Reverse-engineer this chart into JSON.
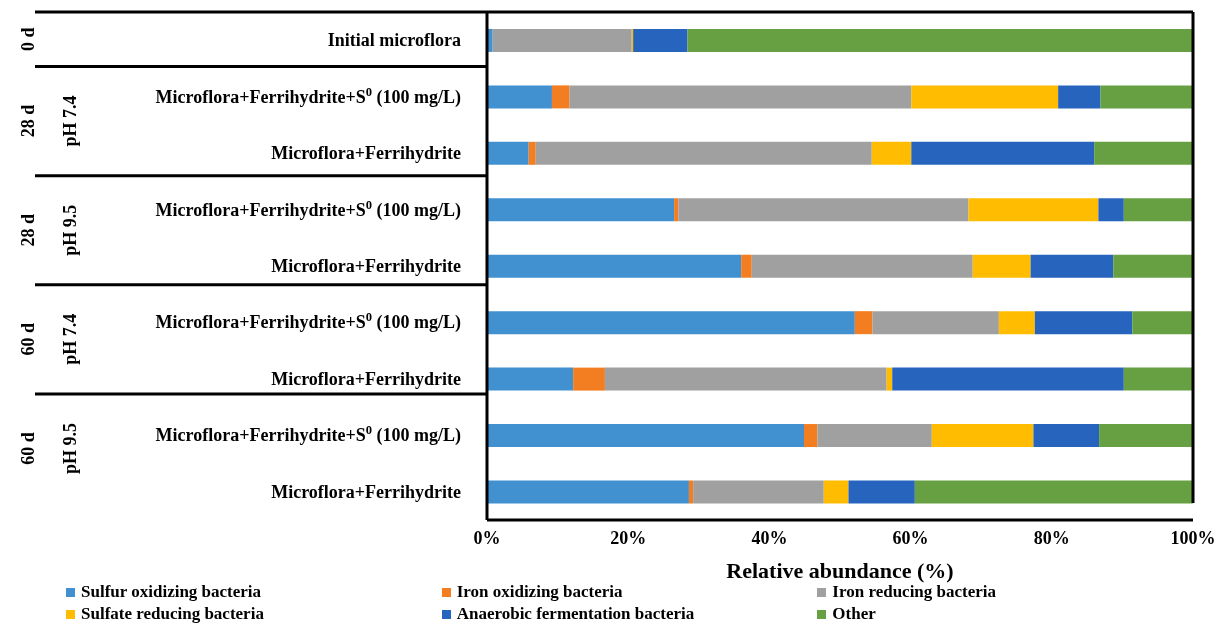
{
  "chart_data": {
    "type": "bar",
    "orientation": "horizontal",
    "stacked": true,
    "categories": [
      "Initial microflora",
      "Microflora+Ferrihydrite+S$^{0}$ (100 mg/L)",
      "Microflora+Ferrihydrite",
      "Microflora+Ferrihydrite+S$^{0}$ (100 mg/L)",
      "Microflora+Ferrihydrite",
      "Microflora+Ferrihydrite+S$^{0}$ (100 mg/L)",
      "Microflora+Ferrihydrite",
      "Microflora+Ferrihydrite+S$^{0}$ (100 mg/L)",
      "Microflora+Ferrihydrite"
    ],
    "series": [
      {
        "name": "Sulfur oxidizing bacteria",
        "color": "#4190d0",
        "values": [
          0.8,
          9.2,
          5.9,
          26.5,
          36.0,
          52.1,
          12.2,
          44.9,
          28.6
        ]
      },
      {
        "name": "Iron oxidizing bacteria",
        "color": "#f37e21",
        "values": [
          0,
          2.5,
          1.0,
          0.6,
          1.5,
          2.5,
          4.5,
          1.9,
          0.6
        ]
      },
      {
        "name": "Iron reducing bacteria",
        "color": "#a0a0a0",
        "values": [
          19.7,
          48.4,
          47.6,
          41.1,
          31.3,
          17.9,
          39.9,
          16.2,
          18.5
        ]
      },
      {
        "name": "Sulfate reducing bacteria",
        "color": "#ffbc00",
        "values": [
          0.2,
          20.8,
          5.6,
          18.4,
          8.2,
          5.1,
          0.8,
          14.4,
          3.5
        ]
      },
      {
        "name": "Anaerobic fermentation bacteria",
        "color": "#2764be",
        "values": [
          7.7,
          6.0,
          25.9,
          3.6,
          11.7,
          13.8,
          32.8,
          9.3,
          9.4
        ]
      },
      {
        "name": "Other",
        "color": "#67a042",
        "values": [
          71.6,
          13.1,
          14.0,
          9.8,
          11.3,
          8.6,
          9.8,
          13.3,
          39.4
        ]
      }
    ],
    "xlabel": "Relative abundance (%)",
    "xlim": [
      0,
      100
    ],
    "xticks": [
      {
        "value": 0,
        "label": "0%"
      },
      {
        "value": 20,
        "label": "20%"
      },
      {
        "value": 40,
        "label": "40%"
      },
      {
        "value": 60,
        "label": "60%"
      },
      {
        "value": 80,
        "label": "80%"
      },
      {
        "value": 100,
        "label": "100%"
      }
    ],
    "annotations": [
      "0 d",
      "28 d",
      "pH 7.4",
      "28 d",
      "pH 9.5",
      "60 d",
      "pH 7.4",
      "60 d",
      "pH 9.5"
    ],
    "legend": "bottom",
    "grid": false
  }
}
